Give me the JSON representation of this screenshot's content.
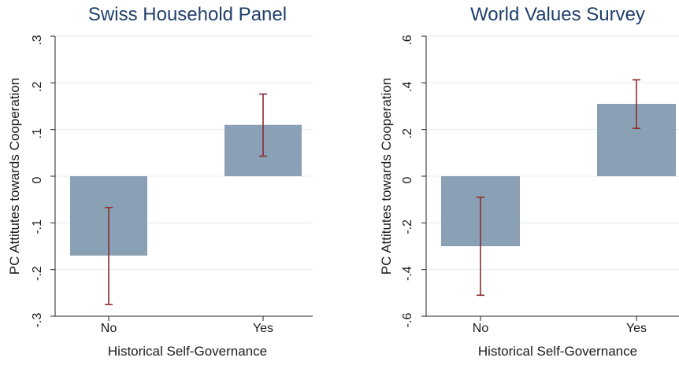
{
  "chart_data": [
    {
      "type": "bar",
      "title": "Swiss Household Panel",
      "xlabel": "Historical Self-Governance",
      "ylabel": "PC Attitutes towards Cooperation",
      "categories": [
        "No",
        "Yes"
      ],
      "values": [
        -0.17,
        0.11
      ],
      "ci_low": [
        -0.275,
        0.043
      ],
      "ci_high": [
        -0.067,
        0.176
      ],
      "ylim": [
        -0.3,
        0.3
      ],
      "yticks": [
        -0.3,
        -0.2,
        -0.1,
        0,
        0.1,
        0.2,
        0.3
      ],
      "ytick_labels": [
        "-.3",
        "-.2",
        "-.1",
        "0",
        ".1",
        ".2",
        ".3"
      ],
      "grid": true,
      "colors": {
        "bar": "#8aa0b5",
        "error_bar": "#8b2d2f",
        "title": "#1f3f6b"
      }
    },
    {
      "type": "bar",
      "title": "World Values Survey",
      "xlabel": "Historical Self-Governance",
      "ylabel": "PC Attitutes towards Cooperation",
      "categories": [
        "No",
        "Yes"
      ],
      "values": [
        -0.3,
        0.31
      ],
      "ci_low": [
        -0.51,
        0.205
      ],
      "ci_high": [
        -0.09,
        0.413
      ],
      "ylim": [
        -0.6,
        0.6
      ],
      "yticks": [
        -0.6,
        -0.4,
        -0.2,
        0,
        0.2,
        0.4,
        0.6
      ],
      "ytick_labels": [
        "-.6",
        "-.4",
        "-.2",
        "0",
        ".2",
        ".4",
        ".6"
      ],
      "grid": true,
      "colors": {
        "bar": "#8aa0b5",
        "error_bar": "#8b2d2f",
        "title": "#1f3f6b"
      }
    }
  ]
}
